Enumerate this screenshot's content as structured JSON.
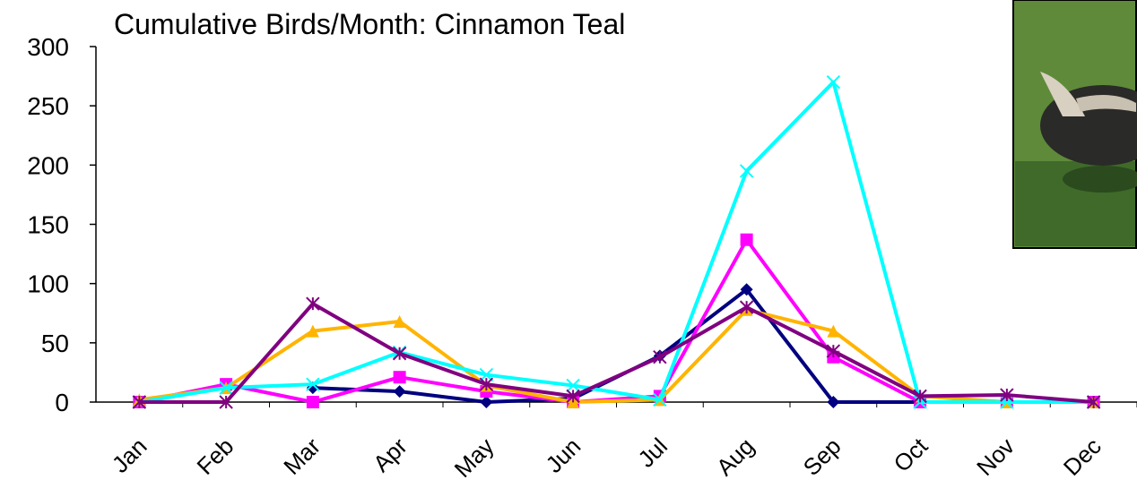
{
  "chart_data": {
    "type": "line",
    "title": "Cumulative Birds/Month: Cinnamon Teal",
    "categories": [
      "Jan",
      "Feb",
      "Mar",
      "Apr",
      "May",
      "Jun",
      "Jul",
      "Aug",
      "Sep",
      "Oct",
      "Nov",
      "Dec"
    ],
    "ylim": [
      0,
      300
    ],
    "yticks": [
      0,
      50,
      100,
      150,
      200,
      250,
      300
    ],
    "series": [
      {
        "color": "#000080",
        "marker": "diamond",
        "values": [
          null,
          null,
          12,
          9,
          0,
          3,
          39,
          95,
          0,
          0,
          0,
          0
        ]
      },
      {
        "color": "#ff00ff",
        "marker": "square",
        "values": [
          0,
          15,
          0,
          21,
          9,
          0,
          5,
          137,
          38,
          0,
          0,
          0
        ]
      },
      {
        "color": "#ffb400",
        "marker": "triangle",
        "values": [
          2,
          12,
          60,
          68,
          14,
          0,
          2,
          78,
          60,
          5,
          0,
          0
        ]
      },
      {
        "color": "#00ffff",
        "marker": "x",
        "values": [
          0,
          12,
          15,
          42,
          23,
          14,
          2,
          195,
          270,
          0,
          0,
          0
        ]
      },
      {
        "color": "#800080",
        "marker": "star",
        "values": [
          0,
          0,
          83,
          41,
          15,
          5,
          38,
          80,
          43,
          5,
          6,
          0
        ]
      }
    ]
  }
}
